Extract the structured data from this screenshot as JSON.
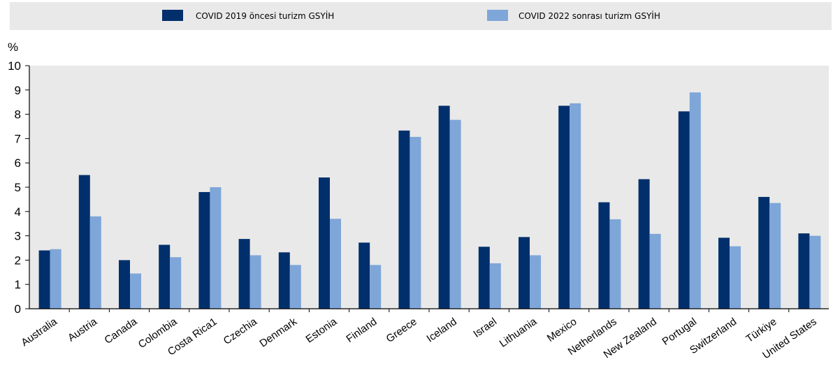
{
  "chart_data": {
    "type": "bar",
    "ylabel": "%",
    "ylim": [
      0,
      10
    ],
    "yticks": [
      0,
      1,
      2,
      3,
      4,
      5,
      6,
      7,
      8,
      9,
      10
    ],
    "grid": false,
    "legend_position": "top",
    "categories": [
      "Australia",
      "Austria",
      "Canada",
      "Colombia",
      "Costa Rica1",
      "Czechia",
      "Denmark",
      "Estonia",
      "Finland",
      "Greece",
      "Iceland",
      "Israel",
      "Lithuania",
      "Mexico",
      "Netherlands",
      "New Zealand",
      "Portugal",
      "Switzerland",
      "Türkiye",
      "United States"
    ],
    "series": [
      {
        "name": "COVID 2019 öncesi turizm GSYİH",
        "color": "#002f6c",
        "values": [
          2.4,
          5.5,
          2.0,
          2.63,
          4.8,
          2.87,
          2.32,
          5.4,
          2.72,
          7.33,
          8.35,
          2.55,
          2.95,
          8.35,
          4.38,
          5.33,
          8.12,
          2.92,
          4.6,
          3.1
        ]
      },
      {
        "name": "COVID 2022 sonrası turizm GSYİH",
        "color": "#7ea6d9",
        "values": [
          2.45,
          3.8,
          1.45,
          2.12,
          5.0,
          2.2,
          1.8,
          3.7,
          1.8,
          7.07,
          7.77,
          1.87,
          2.2,
          8.45,
          3.68,
          3.08,
          8.9,
          2.57,
          4.35,
          3.0
        ]
      }
    ]
  },
  "colors": {
    "plot_background": "#e9e9e9",
    "legend_background": "#e9e9e9",
    "axis": "#000000"
  }
}
